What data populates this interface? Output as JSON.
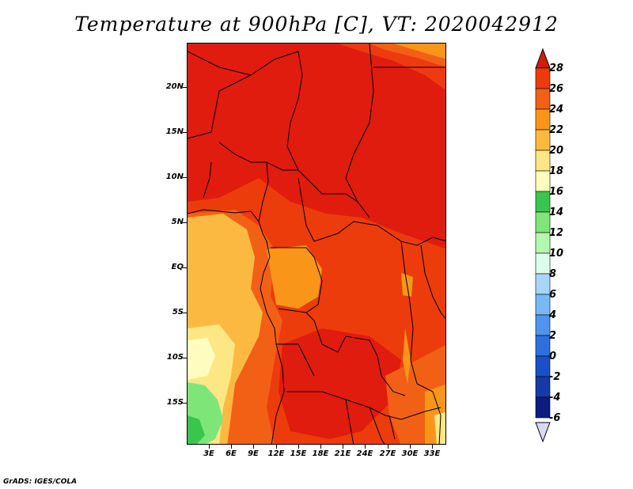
{
  "title": "Temperature at 900hPa [C], VT: 2020042912",
  "credit": "GrADS: IGES/COLA",
  "y_axis": [
    "20N",
    "15N",
    "10N",
    "5N",
    "EQ",
    "5S",
    "10S",
    "15S"
  ],
  "x_axis": [
    "3E",
    "6E",
    "9E",
    "12E",
    "15E",
    "18E",
    "21E",
    "24E",
    "27E",
    "30E",
    "33E"
  ],
  "colorbar": {
    "labels": [
      "28",
      "26",
      "24",
      "22",
      "20",
      "18",
      "16",
      "14",
      "12",
      "10",
      "8",
      "6",
      "4",
      "2",
      "0",
      "-2",
      "-4",
      "-6"
    ],
    "colors": [
      "#d11d0c",
      "#ec3c0c",
      "#f26016",
      "#f9961a",
      "#fcb941",
      "#fde784",
      "#fefdbf",
      "#3ac64e",
      "#7ee679",
      "#b4f8b0",
      "#ddfbec",
      "#a8d6fa",
      "#78b8f4",
      "#4f95ee",
      "#2c70e0",
      "#1a4fc6",
      "#153aa6",
      "#0a1d80",
      "#05115c"
    ],
    "top_triangle": "#d11d0c",
    "bottom_triangle": "#d9d9f5"
  }
}
